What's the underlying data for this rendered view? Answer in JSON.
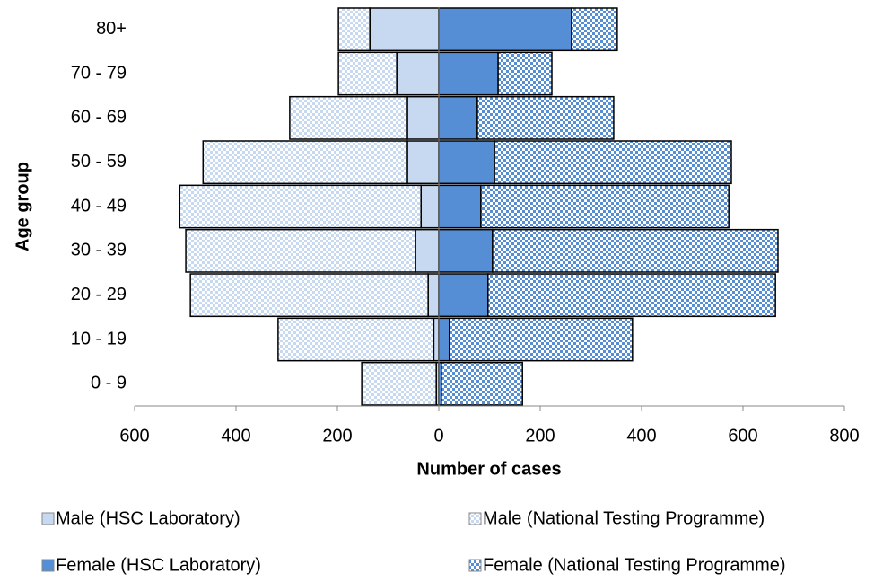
{
  "chart_data": {
    "type": "pyramid",
    "xlabel": "Number of cases",
    "ylabel": "Age group",
    "categories": [
      "0 - 9",
      "10 - 19",
      "20 - 29",
      "30 - 39",
      "40 - 49",
      "50 - 59",
      "60 - 69",
      "70 - 79",
      "80+"
    ],
    "series": [
      {
        "name": "Male (HSC Laboratory)",
        "color": "#c6d9f1",
        "fill": "solid",
        "values": [
          -5,
          -10,
          -21,
          -46,
          -35,
          -62,
          -62,
          -83,
          -136
        ]
      },
      {
        "name": "Male (National Testing Programme)",
        "color": "#c6d9f1",
        "fill": "checker",
        "values": [
          -147,
          -307,
          -469,
          -453,
          -476,
          -403,
          -232,
          -115,
          -62
        ]
      },
      {
        "name": "Female (HSC Laboratory)",
        "color": "#558ed5",
        "fill": "solid",
        "values": [
          5,
          21,
          97,
          106,
          83,
          110,
          76,
          117,
          262
        ]
      },
      {
        "name": "Female (National Testing Programme)",
        "color": "#558ed5",
        "fill": "checker",
        "values": [
          160,
          361,
          567,
          563,
          489,
          467,
          269,
          106,
          90
        ]
      }
    ],
    "xlim": [
      -600,
      800
    ],
    "xticks": [
      {
        "value": -600,
        "label": "600"
      },
      {
        "value": -400,
        "label": "400"
      },
      {
        "value": -200,
        "label": "200"
      },
      0,
      200,
      400,
      600,
      800
    ],
    "legend": "bottom"
  }
}
